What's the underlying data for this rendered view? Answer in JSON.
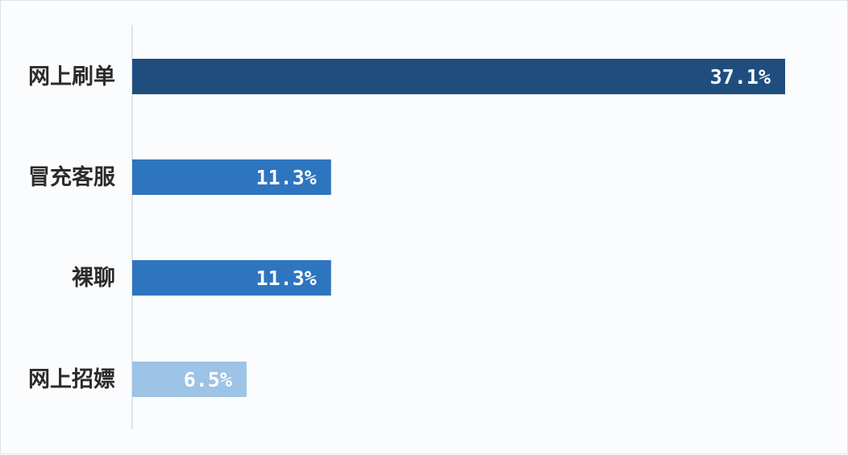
{
  "chart_data": {
    "type": "bar",
    "orientation": "horizontal",
    "categories": [
      "网上刷单",
      "冒充客服",
      "裸聊",
      "网上招嫖"
    ],
    "values": [
      37.1,
      11.3,
      11.3,
      6.5
    ],
    "value_labels": [
      "37.1%",
      "11.3%",
      "11.3%",
      "6.5%"
    ],
    "bar_colors": [
      "#1f4e7e",
      "#2e75c0",
      "#2e75c0",
      "#9dc3e6"
    ],
    "label_color": "#2b2b2b",
    "value_label_color": "#ffffff",
    "axis_color": "#d6dce5",
    "xlim": [
      0,
      37.1
    ],
    "grid": false,
    "legend": "none"
  }
}
